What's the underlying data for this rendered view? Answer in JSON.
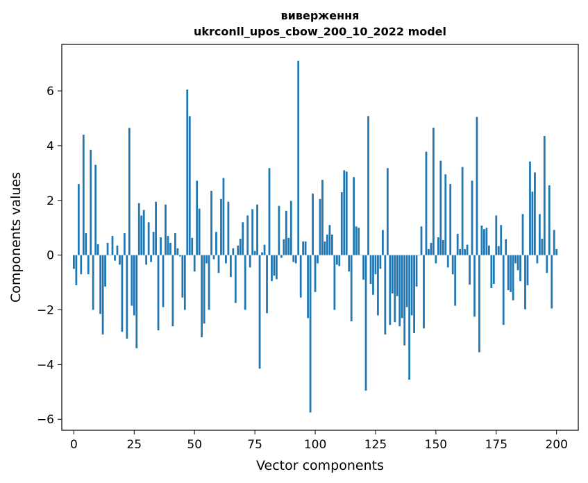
{
  "chart_data": {
    "type": "bar",
    "title": "виверження",
    "subtitle": "ukrconll_upos_cbow_200_10_2022 model",
    "xlabel": "Vector components",
    "ylabel": "Components values",
    "xlim": [
      -5,
      209
    ],
    "ylim": [
      -6.4,
      7.7
    ],
    "xticks": [
      0,
      25,
      50,
      75,
      100,
      125,
      150,
      175,
      200
    ],
    "yticks": [
      -6,
      -4,
      -2,
      0,
      2,
      4,
      6
    ],
    "xtick_labels": [
      "0",
      "25",
      "50",
      "75",
      "100",
      "125",
      "150",
      "175",
      "200"
    ],
    "ytick_labels": [
      "−6",
      "−4",
      "−2",
      "0",
      "2",
      "4",
      "6"
    ],
    "grid": false,
    "bar_color": "#1f77b4",
    "values": [
      -0.5,
      -1.1,
      2.6,
      -0.7,
      4.4,
      0.8,
      -0.7,
      3.85,
      -2.0,
      3.3,
      0.4,
      -2.15,
      -2.9,
      -1.15,
      0.45,
      0.0,
      0.7,
      -0.2,
      0.35,
      -0.35,
      -2.8,
      0.8,
      -3.05,
      4.65,
      -1.85,
      -2.2,
      -3.4,
      1.9,
      1.45,
      1.65,
      -0.35,
      1.2,
      -0.25,
      0.85,
      1.95,
      -2.75,
      0.65,
      -1.9,
      1.85,
      0.7,
      0.45,
      -2.6,
      0.8,
      0.25,
      -0.05,
      -1.55,
      -2.0,
      6.05,
      5.08,
      0.63,
      -0.6,
      2.72,
      1.7,
      -3.0,
      -2.5,
      -0.3,
      -2.0,
      2.35,
      -0.15,
      0.85,
      -0.65,
      2.05,
      2.82,
      -0.3,
      1.95,
      -0.8,
      0.25,
      -1.75,
      0.35,
      0.6,
      1.2,
      -2.0,
      1.45,
      -0.45,
      1.68,
      0.15,
      1.85,
      -4.15,
      0.1,
      0.38,
      -2.12,
      3.18,
      -0.95,
      -0.75,
      -0.88,
      1.8,
      -0.1,
      0.58,
      1.62,
      0.63,
      1.98,
      -0.25,
      -0.3,
      7.1,
      -1.55,
      0.5,
      0.5,
      -2.3,
      -5.75,
      2.25,
      -1.35,
      -0.3,
      2.05,
      2.75,
      0.5,
      0.75,
      1.1,
      0.75,
      -2.0,
      -0.35,
      -0.4,
      2.3,
      3.1,
      3.05,
      -0.6,
      -2.42,
      2.85,
      1.05,
      1.0,
      0.0,
      -0.9,
      -4.95,
      5.08,
      -1.05,
      -1.45,
      -0.7,
      -2.2,
      -0.5,
      0.92,
      -2.9,
      3.18,
      -2.55,
      -1.4,
      -2.45,
      -1.5,
      -2.6,
      -2.3,
      -3.3,
      -1.9,
      -4.55,
      -2.2,
      -2.85,
      -1.15,
      0.0,
      1.05,
      -2.68,
      3.78,
      0.22,
      0.45,
      4.66,
      -0.3,
      0.65,
      3.45,
      0.55,
      2.95,
      -0.45,
      2.6,
      -0.7,
      -1.85,
      0.78,
      0.22,
      3.22,
      0.22,
      0.38,
      -1.08,
      2.72,
      -2.25,
      5.05,
      -3.55,
      1.08,
      0.95,
      1.0,
      0.35,
      -1.2,
      -1.05,
      1.45,
      0.33,
      1.1,
      -2.55,
      0.58,
      -1.28,
      -1.35,
      -1.65,
      -0.3,
      -0.55,
      -0.95,
      1.5,
      -1.98,
      -1.1,
      3.42,
      2.32,
      3.02,
      -0.3,
      1.5,
      0.6,
      4.35,
      -0.65,
      2.55,
      -1.95,
      0.92,
      0.22
    ]
  }
}
